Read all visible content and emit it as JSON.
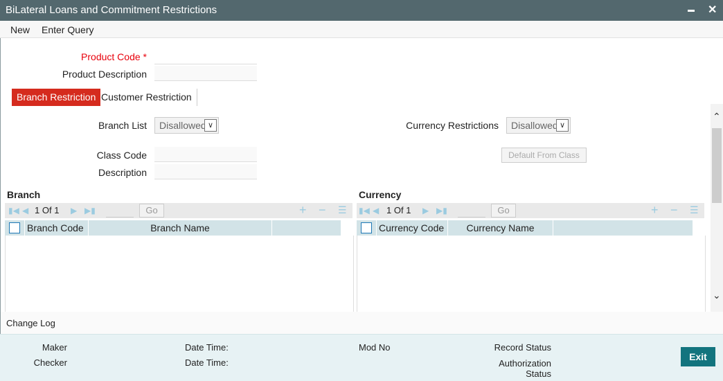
{
  "window": {
    "title": "BiLateral Loans and Commitment Restrictions",
    "minimize": "▬",
    "close": "✕"
  },
  "menu": {
    "new": "New",
    "enter_query": "Enter Query"
  },
  "form": {
    "product_code_label": "Product Code",
    "required_mark": "*",
    "product_code_value": "",
    "product_description_label": "Product Description",
    "product_description_value": ""
  },
  "tabs": [
    {
      "label": "Branch Restriction",
      "active": true
    },
    {
      "label": "Customer Restriction",
      "active": false
    }
  ],
  "branch_restriction": {
    "branch_list_label": "Branch List",
    "branch_list_value": "Disallowed",
    "currency_restrictions_label": "Currency Restrictions",
    "currency_restrictions_value": "Disallowed",
    "class_code_label": "Class Code",
    "class_code_value": "",
    "description_label": "Description",
    "description_value": "",
    "default_from_class": "Default From Class"
  },
  "branch_grid": {
    "title": "Branch",
    "page": "1",
    "of": "Of",
    "total": "1",
    "go": "Go",
    "columns": [
      "Branch Code",
      "Branch Name"
    ]
  },
  "currency_grid": {
    "title": "Currency",
    "page": "1",
    "of": "Of",
    "total": "1",
    "go": "Go",
    "columns": [
      "Currency Code",
      "Currency Name"
    ]
  },
  "change_log": {
    "label": "Change Log"
  },
  "footer": {
    "maker": "Maker",
    "checker": "Checker",
    "date_time": "Date Time:",
    "mod_no": "Mod No",
    "record_status": "Record Status",
    "authorization": "Authorization",
    "status": "Status",
    "exit": "Exit"
  },
  "colors": {
    "titlebar": "#53686e",
    "active_tab": "#d52b1e",
    "required": "#e8000b",
    "exit_button": "#12747e"
  }
}
